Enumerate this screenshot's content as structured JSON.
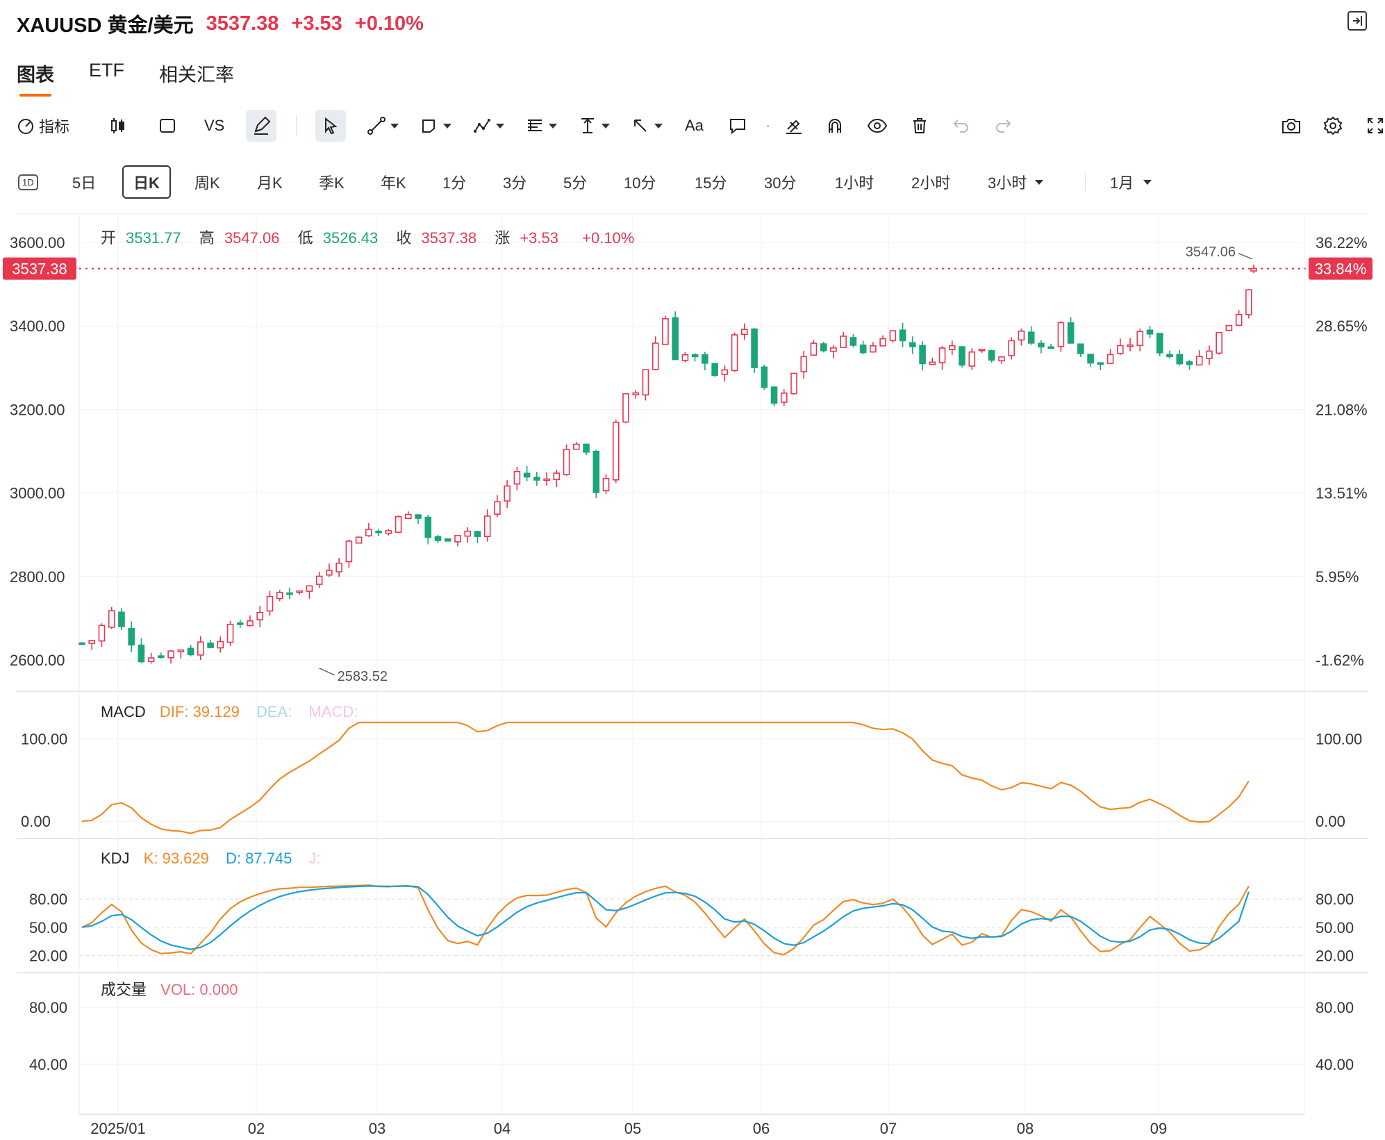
{
  "header": {
    "symbol": "XAUUSD 黄金/美元",
    "price": "3537.38",
    "change": "+3.53",
    "change_pct": "+0.10%"
  },
  "tabs": [
    "图表",
    "ETF",
    "相关汇率"
  ],
  "toolbar": {
    "indicators_label": "指标",
    "vs_label": "VS",
    "text_tool_label": "Aa"
  },
  "periods": [
    "1D",
    "5日",
    "日K",
    "周K",
    "月K",
    "季K",
    "年K",
    "1分",
    "3分",
    "5分",
    "10分",
    "15分",
    "30分",
    "1小时",
    "2小时",
    "3小时",
    "1月"
  ],
  "active_period": "日K",
  "ohlc": {
    "open_label": "开",
    "open": "3531.77",
    "high_label": "高",
    "high": "3547.06",
    "low_label": "低",
    "low": "3526.43",
    "close_label": "收",
    "close": "3537.38",
    "change_label": "涨",
    "change": "+3.53",
    "change_pct": "+0.10%"
  },
  "colors": {
    "up": "#e8364f",
    "down": "#1aa57a",
    "dif": "#f08a24",
    "kdj_d": "#1aa0d8",
    "accent": "#ff6a00"
  },
  "chart_data": {
    "type": "candlestick",
    "current_price_label": "3537.38",
    "current_pct_label": "33.84%",
    "max_label": "3547.06",
    "min_label": "2583.52",
    "price_ticks": [
      "3600.00",
      "3400.00",
      "3200.00",
      "3000.00",
      "2800.00",
      "2600.00"
    ],
    "pct_ticks": [
      "36.22%",
      "28.65%",
      "21.08%",
      "13.51%",
      "5.95%",
      "-1.62%"
    ],
    "x_ticks": [
      "2025/01",
      "02",
      "03",
      "04",
      "05",
      "06",
      "07",
      "08",
      "09"
    ],
    "ylim": [
      2530,
      3640
    ],
    "close_series": [
      [
        0,
        2640
      ],
      [
        5,
        2650
      ],
      [
        10,
        2700
      ],
      [
        13,
        2720
      ],
      [
        17,
        2660
      ],
      [
        21,
        2640
      ],
      [
        25,
        2595
      ],
      [
        30,
        2615
      ],
      [
        35,
        2618
      ],
      [
        40,
        2628
      ],
      [
        44,
        2620
      ],
      [
        48,
        2640
      ],
      [
        52,
        2640
      ],
      [
        58,
        2665
      ],
      [
        62,
        2680
      ],
      [
        68,
        2700
      ],
      [
        74,
        2730
      ],
      [
        80,
        2760
      ],
      [
        86,
        2770
      ],
      [
        92,
        2775
      ],
      [
        98,
        2815
      ],
      [
        104,
        2845
      ],
      [
        108,
        2880
      ],
      [
        114,
        2915
      ],
      [
        120,
        2905
      ],
      [
        126,
        2930
      ],
      [
        132,
        2945
      ],
      [
        136,
        2940
      ],
      [
        140,
        2895
      ],
      [
        144,
        2880
      ],
      [
        150,
        2905
      ],
      [
        156,
        2910
      ],
      [
        160,
        2895
      ],
      [
        164,
        2940
      ],
      [
        170,
        3000
      ],
      [
        176,
        3050
      ],
      [
        180,
        3040
      ],
      [
        186,
        3020
      ],
      [
        192,
        3060
      ],
      [
        198,
        3120
      ],
      [
        202,
        3130
      ],
      [
        206,
        3040
      ],
      [
        210,
        2980
      ],
      [
        214,
        3100
      ],
      [
        218,
        3220
      ],
      [
        224,
        3240
      ],
      [
        230,
        3330
      ],
      [
        236,
        3420
      ],
      [
        240,
        3330
      ],
      [
        246,
        3330
      ],
      [
        252,
        3300
      ],
      [
        258,
        3260
      ],
      [
        262,
        3350
      ],
      [
        266,
        3420
      ],
      [
        270,
        3340
      ],
      [
        276,
        3240
      ],
      [
        282,
        3200
      ],
      [
        286,
        3260
      ],
      [
        292,
        3330
      ],
      [
        296,
        3360
      ],
      [
        300,
        3330
      ],
      [
        304,
        3360
      ],
      [
        310,
        3370
      ],
      [
        314,
        3340
      ],
      [
        320,
        3350
      ],
      [
        326,
        3400
      ],
      [
        330,
        3370
      ],
      [
        336,
        3360
      ],
      [
        340,
        3300
      ],
      [
        346,
        3340
      ],
      [
        352,
        3350
      ],
      [
        356,
        3320
      ],
      [
        360,
        3350
      ],
      [
        366,
        3340
      ],
      [
        370,
        3320
      ],
      [
        376,
        3370
      ],
      [
        382,
        3380
      ],
      [
        386,
        3340
      ],
      [
        392,
        3360
      ],
      [
        396,
        3400
      ],
      [
        400,
        3370
      ],
      [
        406,
        3320
      ],
      [
        410,
        3290
      ],
      [
        414,
        3330
      ],
      [
        420,
        3340
      ],
      [
        426,
        3370
      ],
      [
        432,
        3390
      ],
      [
        436,
        3340
      ],
      [
        440,
        3330
      ],
      [
        446,
        3320
      ],
      [
        450,
        3310
      ],
      [
        456,
        3350
      ],
      [
        460,
        3380
      ],
      [
        466,
        3420
      ],
      [
        470,
        3450
      ],
      [
        474,
        3537
      ]
    ],
    "indicators": {
      "macd": {
        "label": "MACD",
        "dif_label": "DIF: 39.129",
        "dea_label": "DEA:",
        "macd_label": "MACD:",
        "ticks": [
          "100.00",
          "0.00"
        ],
        "ylim": [
          -15,
          120
        ]
      },
      "kdj": {
        "label": "KDJ",
        "k_label": "K: 93.629",
        "d_label": "D: 87.745",
        "j_label": "J:",
        "ticks": [
          "80.00",
          "50.00",
          "20.00"
        ],
        "ylim": [
          5,
          105
        ]
      },
      "volume": {
        "label": "成交量",
        "vol_label": "VOL: 0.000",
        "ticks": [
          "80.00",
          "40.00"
        ]
      }
    }
  }
}
